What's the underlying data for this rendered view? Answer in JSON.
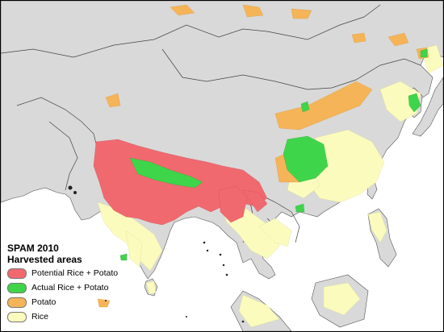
{
  "legend": {
    "title_line1": "SPAM 2010",
    "title_line2": "Harvested areas",
    "items": [
      {
        "label": "Potential Rice + Potato",
        "color": "#f0696f"
      },
      {
        "label": "Actual Rice + Potato",
        "color": "#3fd54a"
      },
      {
        "label": "Potato",
        "color": "#f5b457"
      },
      {
        "label": "Rice",
        "color": "#fbfbbe"
      }
    ]
  },
  "colors": {
    "land": "#d9d9d9",
    "sea": "#ffffff",
    "border": "#444444",
    "potential": "#f0696f",
    "actual": "#3fd54a",
    "potato": "#f5b457",
    "rice": "#fbfbbe"
  }
}
